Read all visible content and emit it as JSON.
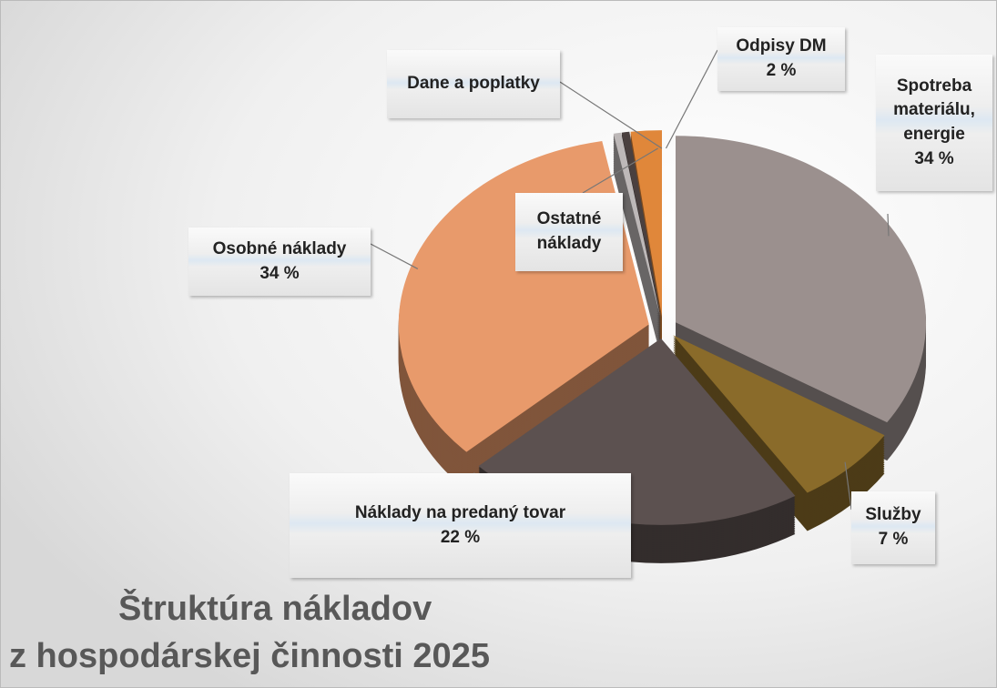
{
  "chart_data": {
    "type": "pie",
    "title": [
      "Štruktúra nákladov",
      "z hospodárskej činnosti 2025"
    ],
    "categories": [
      "Spotreba materiálu, energie",
      "Služby",
      "Náklady na predaný tovar",
      "Osobné náklady",
      "Ostatné náklady",
      "Dane a poplatky",
      "Odpisy DM"
    ],
    "values": [
      34,
      7,
      22,
      34,
      0.5,
      0.5,
      2
    ],
    "value_labels": [
      "34 %",
      "7 %",
      "22 %",
      "34 %",
      null,
      null,
      "2 %"
    ],
    "colors": [
      "#9b908e",
      "#8a6b2a",
      "#5c5150",
      "#e89a6b",
      "#bdb8b8",
      "#4a403f",
      "#e0873a"
    ]
  }
}
